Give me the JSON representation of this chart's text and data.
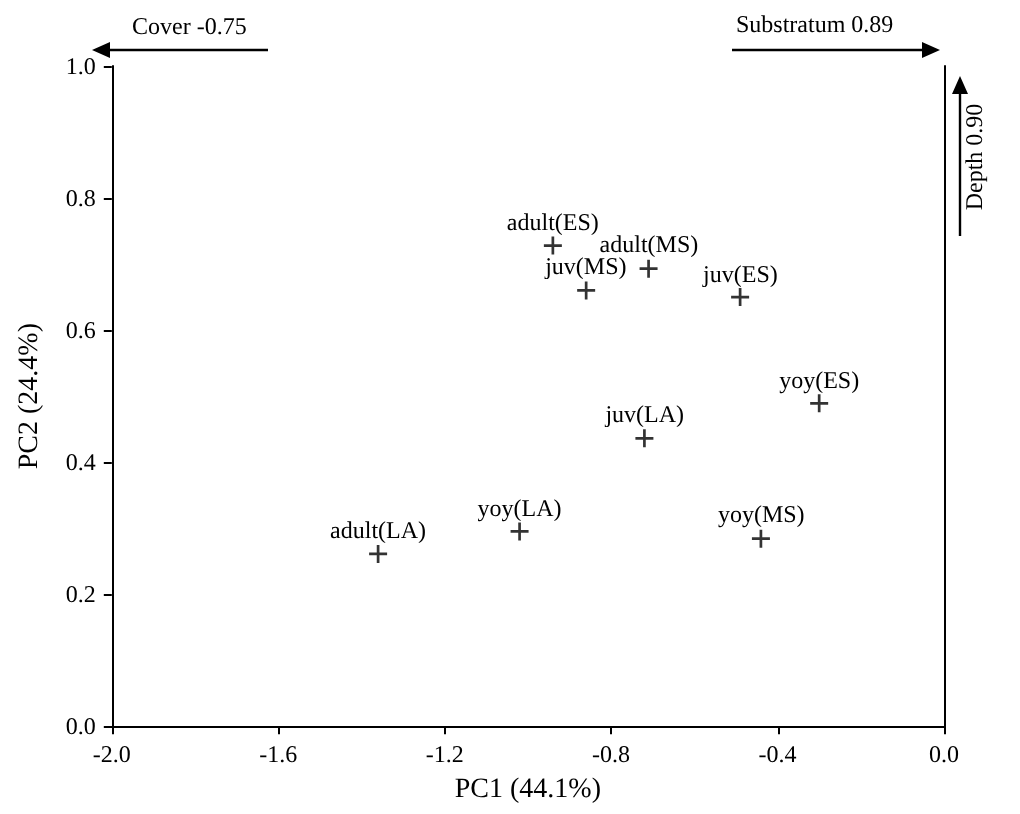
{
  "chart_data": {
    "type": "scatter",
    "xlabel": "PC1 (44.1%)",
    "ylabel": "PC2 (24.4%)",
    "x": [
      -0.94,
      -0.71,
      -0.86,
      -0.49,
      -0.3,
      -0.72,
      -1.02,
      -1.36,
      -0.44
    ],
    "series": [
      {
        "color": "#000000",
        "values": [
          0.728,
          0.693,
          0.66,
          0.65,
          0.489,
          0.436,
          0.295,
          0.261,
          0.284
        ]
      }
    ],
    "xlim": [
      -2.0,
      0.0
    ],
    "xticks": [
      {
        "value": -2.0,
        "label": "-2.0"
      },
      {
        "value": -1.6,
        "label": "-1.6"
      },
      {
        "value": -1.2,
        "label": "-1.2"
      },
      {
        "value": -0.8,
        "label": "-0.8"
      },
      {
        "value": -0.4,
        "label": "-0.4"
      },
      {
        "value": 0.0,
        "label": "0.0"
      }
    ],
    "ylim": [
      0.0,
      1.0
    ],
    "yticks": [
      {
        "value": 0.0,
        "label": "0.0"
      },
      {
        "value": 0.2,
        "label": "0.2"
      },
      {
        "value": 0.4,
        "label": "0.4"
      },
      {
        "value": 0.6,
        "label": "0.6"
      },
      {
        "value": 0.8,
        "label": "0.8"
      },
      {
        "value": 1.0,
        "label": "1.0"
      }
    ],
    "marker": "cross",
    "annotations": [
      {
        "text": "adult(ES)",
        "x": -0.94,
        "y": 0.728
      },
      {
        "text": "adult(MS)",
        "x": -0.71,
        "y": 0.693
      },
      {
        "text": "juv(MS)",
        "x": -0.86,
        "y": 0.66
      },
      {
        "text": "juv(ES)",
        "x": -0.49,
        "y": 0.65
      },
      {
        "text": "yoy(ES)",
        "x": -0.3,
        "y": 0.489
      },
      {
        "text": "juv(LA)",
        "x": -0.72,
        "y": 0.436
      },
      {
        "text": "yoy(LA)",
        "x": -1.02,
        "y": 0.295
      },
      {
        "text": "adult(LA)",
        "x": -1.36,
        "y": 0.261
      },
      {
        "text": "yoy(MS)",
        "x": -0.44,
        "y": 0.284
      },
      "Cover -0.75",
      "Substratum 0.89",
      "Depth 0.90"
    ]
  }
}
